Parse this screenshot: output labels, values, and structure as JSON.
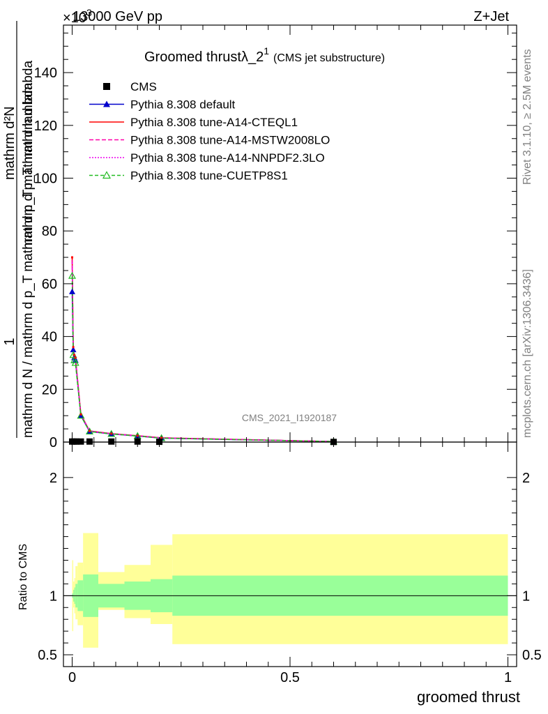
{
  "header": {
    "left": "13000 GeV pp",
    "right": "Z+Jet",
    "exponent_label": "×10",
    "exponent_power": "3"
  },
  "side_labels": {
    "rivet": "Rivet 3.1.10, ≥ 2.5M events",
    "mcplots": "mcplots.cern.ch [arXiv:1306.3436]"
  },
  "watermark": "CMS_2021_I1920187",
  "title": {
    "main": "Groomed thrustλ_2",
    "sup": "1",
    "sub": "(CMS jet substructure)"
  },
  "ylabel_main": {
    "frac1_num": "1",
    "frac1_den": "mathrm d N / mathrm d p_T mathrm d p_T mathrm d lambda",
    "frac2_num": "mathrm d²N",
    "frac2_den": "mathrm d p_T mathrm d lambda"
  },
  "ylabel_ratio": "Ratio to CMS",
  "xlabel": "groomed thrust",
  "chart_data": {
    "type": "line",
    "xlim": [
      -0.02,
      1.02
    ],
    "ylim_main": [
      0,
      158
    ],
    "ylim_ratio": [
      0.4,
      2.3
    ],
    "main_yticks": [
      0,
      20,
      40,
      60,
      80,
      100,
      120,
      140
    ],
    "ratio_yticks": [
      0.5,
      1,
      2
    ],
    "xticks": [
      0,
      0.5,
      1
    ],
    "legend": [
      {
        "label": "CMS",
        "color": "#000000",
        "style": "square"
      },
      {
        "label": "Pythia 8.308 default",
        "color": "#0000cc",
        "style": "line-triangle"
      },
      {
        "label": "Pythia 8.308 tune-A14-CTEQL1",
        "color": "#ff0000",
        "style": "solid"
      },
      {
        "label": "Pythia 8.308 tune-A14-MSTW2008LO",
        "color": "#ff00aa",
        "style": "dashed"
      },
      {
        "label": "Pythia 8.308 tune-A14-NNPDF2.3LO",
        "color": "#ee00ee",
        "style": "dotted"
      },
      {
        "label": "Pythia 8.308 tune-CUETP8S1",
        "color": "#22bb22",
        "style": "dashed-open-triangle"
      }
    ],
    "cms": {
      "x": [
        0.0,
        0.005,
        0.01,
        0.02,
        0.04,
        0.09,
        0.15,
        0.2,
        0.6
      ],
      "y": [
        0.2,
        0.2,
        0.2,
        0.2,
        0.2,
        0.2,
        0.2,
        0.1,
        0.05
      ]
    },
    "series": [
      {
        "name": "Pythia 8.308 default",
        "color": "#0000cc",
        "x": [
          0.0,
          0.0025,
          0.005,
          0.0075,
          0.02,
          0.04,
          0.09,
          0.15,
          0.205,
          0.6
        ],
        "y": [
          57,
          35,
          32,
          31,
          10,
          4,
          3.1,
          2.3,
          1.5,
          0.2
        ]
      },
      {
        "name": "Pythia 8.308 tune-A14-CTEQL1",
        "color": "#ff0000",
        "x": [
          0.0,
          0.0025,
          0.005,
          0.0075,
          0.02,
          0.04,
          0.09,
          0.15,
          0.205,
          0.6
        ],
        "y": [
          70,
          36,
          33,
          32,
          10.5,
          4.2,
          3.2,
          2.4,
          1.6,
          0.2
        ]
      },
      {
        "name": "Pythia 8.308 tune-A14-MSTW2008LO",
        "color": "#ff00aa",
        "x": [
          0.0,
          0.0025,
          0.005,
          0.0075,
          0.02,
          0.04,
          0.09,
          0.15,
          0.205,
          0.6
        ],
        "y": [
          69,
          36,
          33,
          32,
          10.4,
          4.2,
          3.2,
          2.4,
          1.6,
          0.2
        ]
      },
      {
        "name": "Pythia 8.308 tune-A14-NNPDF2.3LO",
        "color": "#ee00ee",
        "x": [
          0.0,
          0.0025,
          0.005,
          0.0075,
          0.02,
          0.04,
          0.09,
          0.15,
          0.205,
          0.6
        ],
        "y": [
          68,
          35.5,
          32.5,
          31.5,
          10.3,
          4.1,
          3.1,
          2.35,
          1.55,
          0.2
        ]
      },
      {
        "name": "Pythia 8.308 tune-CUETP8S1",
        "color": "#22bb22",
        "x": [
          0.0,
          0.0025,
          0.005,
          0.0075,
          0.02,
          0.04,
          0.09,
          0.15,
          0.205,
          0.6
        ],
        "y": [
          63,
          33,
          31,
          30,
          10,
          4,
          3.1,
          2.3,
          1.5,
          0.2
        ]
      }
    ],
    "ratio_bands": {
      "edges": [
        0.0,
        0.0025,
        0.005,
        0.0075,
        0.0125,
        0.025,
        0.06,
        0.12,
        0.18,
        0.23,
        1.0
      ],
      "green_lo": [
        0.98,
        0.95,
        0.93,
        0.9,
        0.87,
        0.82,
        0.9,
        0.88,
        0.86,
        0.83
      ],
      "green_hi": [
        1.02,
        1.05,
        1.07,
        1.1,
        1.13,
        1.18,
        1.1,
        1.12,
        1.14,
        1.17
      ],
      "yellow_lo": [
        0.7,
        0.9,
        0.85,
        0.8,
        0.75,
        0.56,
        0.88,
        0.81,
        0.76,
        0.59
      ],
      "yellow_hi": [
        1.3,
        1.12,
        1.15,
        1.25,
        1.28,
        1.53,
        1.2,
        1.26,
        1.43,
        1.52
      ]
    }
  }
}
